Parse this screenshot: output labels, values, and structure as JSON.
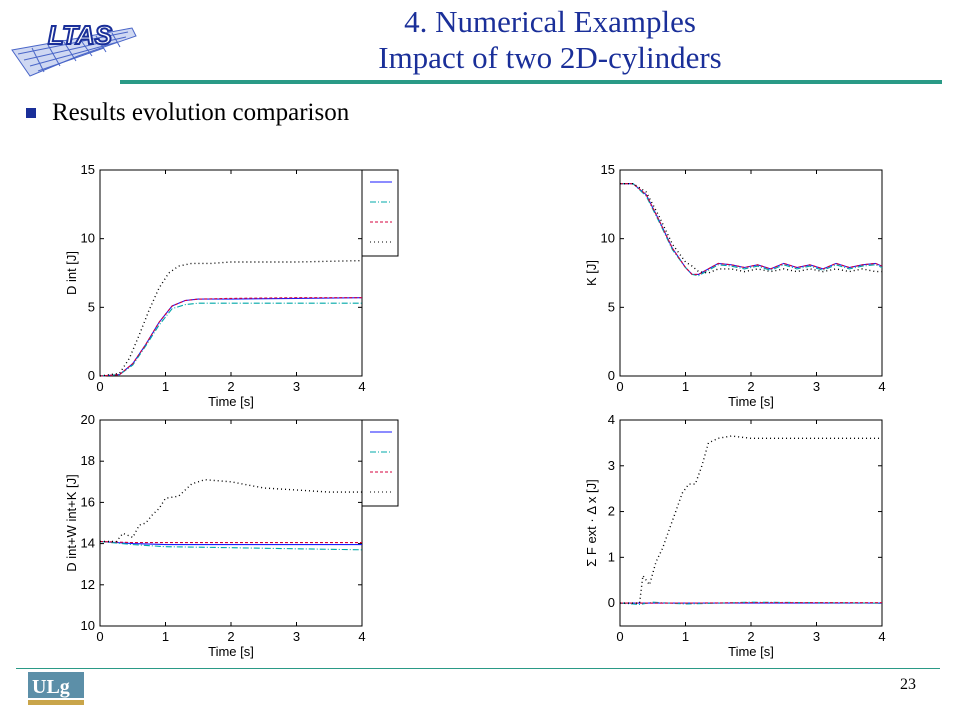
{
  "slide": {
    "title_line1": "4. Numerical Examples",
    "title_line2": "Impact of two 2D-cylinders",
    "bullet": "Results evolution comparison",
    "page_number": "23",
    "logo_top_text": "LTAS",
    "logo_bottom_text": "ULg"
  },
  "colors": {
    "title": "#1a2f99",
    "rule": "#2a9a86",
    "series": [
      "#1a1aff",
      "#00a8a8",
      "#d4003c",
      "#000000"
    ]
  },
  "chart_data": [
    {
      "id": "dint",
      "type": "line",
      "xlabel": "Time [s]",
      "ylabel": "D int [J]",
      "xlim": [
        0,
        4
      ],
      "ylim": [
        0,
        15
      ],
      "xticks": [
        "0",
        "1",
        "2",
        "3",
        "4"
      ],
      "yticks": [
        "0",
        "5",
        "10",
        "15"
      ],
      "legend": "top-right",
      "series": [
        {
          "x": [
            0,
            0.3,
            0.5,
            0.7,
            0.9,
            1.1,
            1.3,
            1.5,
            2.0,
            3.0,
            4.0
          ],
          "y": [
            0,
            0.1,
            0.9,
            2.3,
            3.9,
            5.1,
            5.5,
            5.6,
            5.6,
            5.65,
            5.7
          ]
        },
        {
          "x": [
            0,
            0.3,
            0.5,
            0.7,
            0.9,
            1.1,
            1.3,
            1.5,
            2.0,
            3.0,
            4.0
          ],
          "y": [
            0,
            0.1,
            0.8,
            2.2,
            3.7,
            4.9,
            5.2,
            5.3,
            5.3,
            5.3,
            5.3
          ]
        },
        {
          "x": [
            0,
            0.3,
            0.5,
            0.7,
            0.9,
            1.1,
            1.3,
            1.5,
            2.0,
            3.0,
            4.0
          ],
          "y": [
            0,
            0.1,
            0.9,
            2.3,
            3.9,
            5.1,
            5.5,
            5.6,
            5.65,
            5.7,
            5.7
          ]
        },
        {
          "x": [
            0,
            0.3,
            0.45,
            0.6,
            0.75,
            0.9,
            1.05,
            1.2,
            1.4,
            1.7,
            2.0,
            3.0,
            4.0
          ],
          "y": [
            0,
            0.2,
            1.3,
            3.0,
            4.8,
            6.4,
            7.5,
            8.0,
            8.2,
            8.2,
            8.3,
            8.3,
            8.4
          ]
        }
      ]
    },
    {
      "id": "k",
      "type": "line",
      "xlabel": "Time [s]",
      "ylabel": "K [J]",
      "xlim": [
        0,
        4
      ],
      "ylim": [
        0,
        15
      ],
      "xticks": [
        "0",
        "1",
        "2",
        "3",
        "4"
      ],
      "yticks": [
        "0",
        "5",
        "10",
        "15"
      ],
      "series": [
        {
          "x": [
            0,
            0.2,
            0.4,
            0.6,
            0.8,
            1.0,
            1.1,
            1.2,
            1.35,
            1.5,
            1.7,
            1.9,
            2.1,
            2.3,
            2.5,
            2.7,
            2.9,
            3.1,
            3.3,
            3.5,
            3.7,
            3.9,
            4.0
          ],
          "y": [
            14,
            14,
            13.2,
            11.3,
            9.3,
            7.9,
            7.4,
            7.4,
            7.8,
            8.2,
            8.1,
            7.9,
            8.1,
            7.8,
            8.2,
            7.9,
            8.1,
            7.8,
            8.2,
            7.9,
            8.1,
            8.2,
            8.0
          ]
        },
        {
          "x": [
            0,
            0.2,
            0.4,
            0.6,
            0.8,
            1.0,
            1.1,
            1.2,
            1.35,
            1.5,
            1.7,
            1.9,
            2.1,
            2.3,
            2.5,
            2.7,
            2.9,
            3.1,
            3.3,
            3.5,
            3.7,
            3.9,
            4.0
          ],
          "y": [
            14,
            14,
            13.1,
            11.2,
            9.2,
            7.9,
            7.4,
            7.3,
            7.7,
            8.1,
            8.0,
            7.8,
            8.0,
            7.7,
            8.1,
            7.8,
            8.0,
            7.7,
            8.1,
            7.8,
            8.0,
            8.1,
            7.9
          ]
        },
        {
          "x": [
            0,
            0.2,
            0.4,
            0.6,
            0.8,
            1.0,
            1.1,
            1.2,
            1.35,
            1.5,
            1.7,
            1.9,
            2.1,
            2.3,
            2.5,
            2.7,
            2.9,
            3.1,
            3.3,
            3.5,
            3.7,
            3.9,
            4.0
          ],
          "y": [
            14,
            14,
            13.2,
            11.3,
            9.3,
            7.9,
            7.4,
            7.4,
            7.8,
            8.2,
            8.1,
            7.9,
            8.1,
            7.8,
            8.2,
            7.9,
            8.1,
            7.8,
            8.2,
            7.9,
            8.1,
            8.2,
            8.0
          ]
        },
        {
          "x": [
            0,
            0.2,
            0.4,
            0.6,
            0.8,
            1.0,
            1.1,
            1.2,
            1.35,
            1.5,
            1.7,
            1.9,
            2.1,
            2.3,
            2.5,
            2.7,
            2.9,
            3.1,
            3.3,
            3.5,
            3.7,
            3.9,
            4.0
          ],
          "y": [
            14,
            14,
            13.4,
            11.6,
            9.6,
            8.3,
            8.0,
            7.6,
            7.5,
            7.8,
            7.8,
            7.6,
            7.8,
            7.6,
            7.8,
            7.6,
            7.8,
            7.6,
            7.8,
            7.6,
            7.8,
            7.6,
            7.6
          ]
        }
      ]
    },
    {
      "id": "energy",
      "type": "line",
      "xlabel": "Time [s]",
      "ylabel": "D int+W int+K [J]",
      "xlim": [
        0,
        4
      ],
      "ylim": [
        10,
        20
      ],
      "xticks": [
        "0",
        "1",
        "2",
        "3",
        "4"
      ],
      "yticks": [
        "10",
        "12",
        "14",
        "16",
        "18",
        "20"
      ],
      "legend": "top-right",
      "series": [
        {
          "x": [
            0,
            0.5,
            1.0,
            2.0,
            3.0,
            4.0
          ],
          "y": [
            14.1,
            14.0,
            13.95,
            13.95,
            13.95,
            13.95
          ]
        },
        {
          "x": [
            0,
            0.5,
            1.0,
            2.0,
            3.0,
            4.0
          ],
          "y": [
            14.1,
            13.95,
            13.85,
            13.8,
            13.75,
            13.7
          ]
        },
        {
          "x": [
            0,
            0.5,
            1.0,
            2.0,
            3.0,
            4.0
          ],
          "y": [
            14.1,
            14.05,
            14.05,
            14.05,
            14.05,
            14.05
          ]
        },
        {
          "x": [
            0,
            0.25,
            0.35,
            0.5,
            0.6,
            0.7,
            0.8,
            0.9,
            1.0,
            1.2,
            1.4,
            1.6,
            2.0,
            2.5,
            3.0,
            3.5,
            4.0
          ],
          "y": [
            14.1,
            14.1,
            14.5,
            14.3,
            14.9,
            15.0,
            15.4,
            15.7,
            16.2,
            16.3,
            16.9,
            17.1,
            17.0,
            16.7,
            16.6,
            16.5,
            16.5
          ]
        }
      ]
    },
    {
      "id": "fext",
      "type": "line",
      "xlabel": "Time [s]",
      "ylabel": "Σ F ext · Δ x [J]",
      "xlim": [
        0,
        4
      ],
      "ylim": [
        -0.5,
        4
      ],
      "xticks": [
        "0",
        "1",
        "2",
        "3",
        "4"
      ],
      "yticks": [
        "0",
        "1",
        "2",
        "3",
        "4"
      ],
      "series": [
        {
          "x": [
            0,
            1.0,
            2.0,
            3.0,
            4.0
          ],
          "y": [
            0,
            0,
            0,
            0,
            0
          ]
        },
        {
          "x": [
            0,
            0.3,
            0.5,
            1.0,
            2.0,
            4.0
          ],
          "y": [
            0,
            -0.03,
            0.02,
            -0.02,
            0.02,
            0
          ]
        },
        {
          "x": [
            0,
            1.0,
            2.0,
            3.0,
            4.0
          ],
          "y": [
            0,
            0,
            0.01,
            0.01,
            0.01
          ]
        },
        {
          "x": [
            0,
            0.3,
            0.35,
            0.45,
            0.55,
            0.65,
            0.75,
            0.85,
            0.95,
            1.05,
            1.15,
            1.25,
            1.35,
            1.5,
            1.7,
            2.0,
            2.5,
            3.0,
            3.5,
            4.0
          ],
          "y": [
            0,
            0,
            0.6,
            0.4,
            0.9,
            1.2,
            1.6,
            2.0,
            2.4,
            2.6,
            2.6,
            3.0,
            3.5,
            3.6,
            3.65,
            3.6,
            3.6,
            3.6,
            3.6,
            3.6
          ]
        }
      ]
    }
  ]
}
